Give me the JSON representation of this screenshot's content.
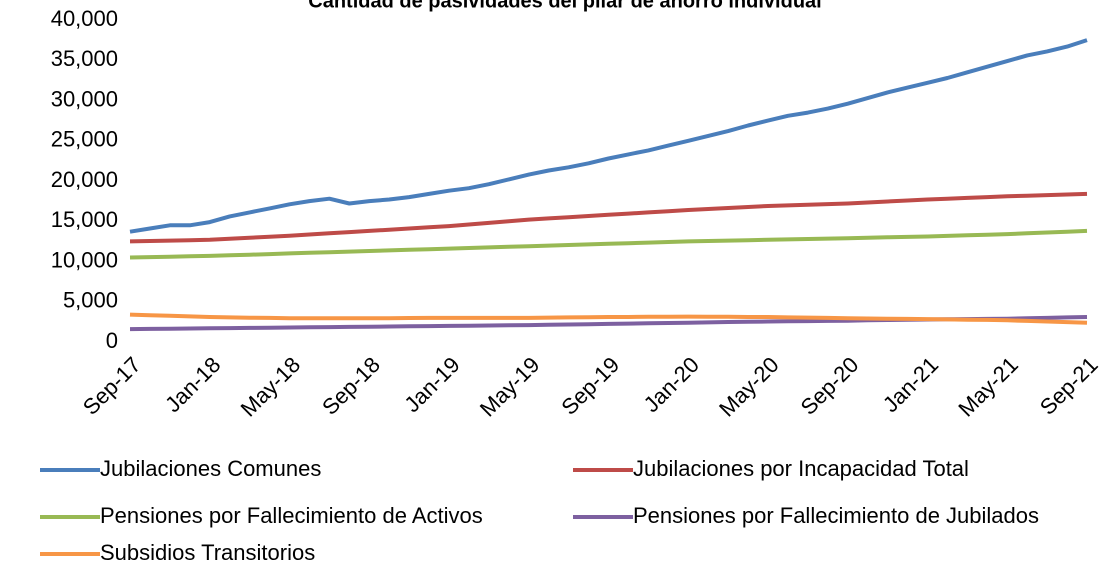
{
  "chart_data": {
    "type": "line",
    "title": "Cantidad de pasividades del pilar de ahorro individual",
    "categories": [
      "Sep-17",
      null,
      null,
      null,
      "Jan-18",
      null,
      null,
      null,
      "May-18",
      null,
      null,
      null,
      "Sep-18",
      null,
      null,
      null,
      "Jan-19",
      null,
      null,
      null,
      "May-19",
      null,
      null,
      null,
      "Sep-19",
      null,
      null,
      null,
      "Jan-20",
      null,
      null,
      null,
      "May-20",
      null,
      null,
      null,
      "Sep-20",
      null,
      null,
      null,
      "Jan-21",
      null,
      null,
      null,
      "May-21",
      null,
      null,
      null,
      "Sep-21"
    ],
    "series": [
      {
        "name": "Jubilaciones Comunes",
        "color": "#4a7ebb",
        "values": [
          13700,
          14100,
          14500,
          14500,
          14900,
          15600,
          16100,
          16600,
          17100,
          17500,
          17800,
          17200,
          17500,
          17700,
          18000,
          18400,
          18800,
          19100,
          19600,
          20200,
          20800,
          21300,
          21700,
          22200,
          22800,
          23300,
          23800,
          24400,
          25000,
          25600,
          26200,
          26900,
          27500,
          28100,
          28500,
          29000,
          29600,
          30300,
          31000,
          31600,
          32200,
          32800,
          33500,
          34200,
          34900,
          35600,
          36100,
          36700,
          37500
        ]
      },
      {
        "name": "Jubilaciones por Incapacidad Total",
        "color": "#be4b48",
        "values": [
          12500,
          12550,
          12600,
          12650,
          12700,
          12825,
          12950,
          13075,
          13200,
          13350,
          13500,
          13650,
          13800,
          13950,
          14100,
          14250,
          14400,
          14600,
          14800,
          15000,
          15200,
          15350,
          15500,
          15650,
          15800,
          15950,
          16100,
          16250,
          16400,
          16525,
          16650,
          16775,
          16900,
          16975,
          17050,
          17125,
          17200,
          17325,
          17450,
          17575,
          17700,
          17800,
          17900,
          18000,
          18100,
          18175,
          18250,
          18325,
          18400
        ]
      },
      {
        "name": "Pensiones por Fallecimiento de Activos",
        "color": "#98b954",
        "values": [
          10500,
          10550,
          10600,
          10650,
          10700,
          10775,
          10850,
          10925,
          11000,
          11075,
          11150,
          11225,
          11300,
          11375,
          11450,
          11525,
          11600,
          11675,
          11750,
          11825,
          11900,
          11975,
          12050,
          12125,
          12200,
          12275,
          12350,
          12425,
          12500,
          12550,
          12600,
          12650,
          12700,
          12750,
          12800,
          12850,
          12900,
          12950,
          13000,
          13050,
          13100,
          13175,
          13250,
          13325,
          13400,
          13500,
          13600,
          13700,
          13800
        ]
      },
      {
        "name": "Pensiones por Fallecimiento de Jubilados",
        "color": "#7d60a0",
        "values": [
          1600,
          1625,
          1650,
          1675,
          1700,
          1725,
          1750,
          1775,
          1800,
          1825,
          1850,
          1875,
          1900,
          1925,
          1950,
          1975,
          2000,
          2025,
          2050,
          2075,
          2100,
          2140,
          2180,
          2210,
          2250,
          2290,
          2330,
          2360,
          2400,
          2440,
          2480,
          2510,
          2550,
          2575,
          2600,
          2625,
          2650,
          2690,
          2730,
          2760,
          2800,
          2825,
          2850,
          2875,
          2900,
          2950,
          3000,
          3050,
          3100
        ]
      },
      {
        "name": "Subsidios Transitorios",
        "color": "#f79646",
        "values": [
          3400,
          3325,
          3250,
          3175,
          3100,
          3060,
          3020,
          2990,
          2950,
          2950,
          2950,
          2950,
          2950,
          2960,
          2980,
          2990,
          3000,
          3000,
          3000,
          3000,
          3000,
          3025,
          3050,
          3075,
          3100,
          3110,
          3125,
          3140,
          3150,
          3140,
          3125,
          3110,
          3100,
          3060,
          3025,
          2990,
          2950,
          2925,
          2900,
          2875,
          2850,
          2810,
          2775,
          2740,
          2700,
          2625,
          2550,
          2475,
          2400
        ]
      }
    ],
    "ylim": [
      0,
      40000
    ],
    "yticks": [
      0,
      {
        "value": 5000,
        "label": "5,000"
      },
      {
        "value": 10000,
        "label": "10,000"
      },
      {
        "value": 15000,
        "label": "15,000"
      },
      {
        "value": 20000,
        "label": "20,000"
      },
      {
        "value": 25000,
        "label": "25,000"
      },
      {
        "value": 30000,
        "label": "30,000"
      },
      {
        "value": 35000,
        "label": "35,000"
      },
      {
        "value": 40000,
        "label": "40,000"
      }
    ],
    "grid": false,
    "legend": "bottom"
  }
}
